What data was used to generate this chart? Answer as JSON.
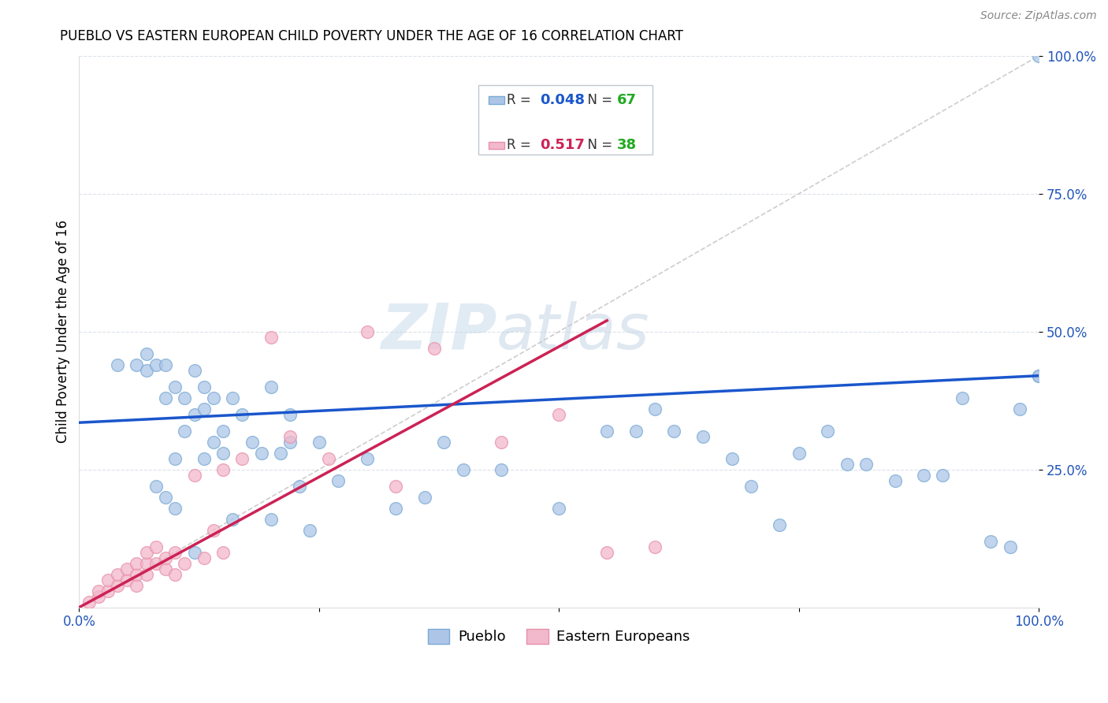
{
  "title": "PUEBLO VS EASTERN EUROPEAN CHILD POVERTY UNDER THE AGE OF 16 CORRELATION CHART",
  "source": "Source: ZipAtlas.com",
  "ylabel": "Child Poverty Under the Age of 16",
  "watermark_zip": "ZIP",
  "watermark_atlas": "atlas",
  "pueblo_R": 0.048,
  "pueblo_N": 67,
  "eastern_R": 0.517,
  "eastern_N": 38,
  "pueblo_color": "#adc6e8",
  "eastern_color": "#f2b8cc",
  "pueblo_edge_color": "#7aaad4",
  "eastern_edge_color": "#e890aa",
  "pueblo_line_color": "#1a56cc",
  "eastern_line_color": "#cc2255",
  "diagonal_color": "#c8c8c8",
  "grid_color": "#d8dfe8",
  "xlim": [
    0,
    1
  ],
  "ylim": [
    0,
    1
  ],
  "xticks": [
    0,
    0.25,
    0.5,
    0.75,
    1.0
  ],
  "yticks": [
    0.25,
    0.5,
    0.75,
    1.0
  ],
  "xticklabels": [
    "0.0%",
    "",
    "",
    "",
    "100.0%"
  ],
  "yticklabels": [
    "25.0%",
    "50.0%",
    "75.0%",
    "100.0%"
  ],
  "N_color": "#22aa22",
  "pueblo_x": [
    0.04,
    0.06,
    0.07,
    0.07,
    0.08,
    0.08,
    0.09,
    0.09,
    0.1,
    0.1,
    0.11,
    0.11,
    0.12,
    0.12,
    0.13,
    0.13,
    0.13,
    0.14,
    0.14,
    0.15,
    0.15,
    0.16,
    0.17,
    0.18,
    0.19,
    0.2,
    0.21,
    0.22,
    0.22,
    0.23,
    0.25,
    0.27,
    0.3,
    0.33,
    0.36,
    0.38,
    0.4,
    0.44,
    0.5,
    0.55,
    0.58,
    0.6,
    0.62,
    0.65,
    0.68,
    0.7,
    0.73,
    0.75,
    0.78,
    0.8,
    0.82,
    0.85,
    0.88,
    0.9,
    0.92,
    0.95,
    0.97,
    0.98,
    1.0,
    1.0,
    1.0,
    0.09,
    0.1,
    0.12,
    0.16,
    0.2,
    0.24
  ],
  "pueblo_y": [
    0.44,
    0.44,
    0.43,
    0.46,
    0.44,
    0.22,
    0.44,
    0.38,
    0.4,
    0.27,
    0.38,
    0.32,
    0.43,
    0.35,
    0.4,
    0.36,
    0.27,
    0.38,
    0.3,
    0.32,
    0.28,
    0.38,
    0.35,
    0.3,
    0.28,
    0.4,
    0.28,
    0.35,
    0.3,
    0.22,
    0.3,
    0.23,
    0.27,
    0.18,
    0.2,
    0.3,
    0.25,
    0.25,
    0.18,
    0.32,
    0.32,
    0.36,
    0.32,
    0.31,
    0.27,
    0.22,
    0.15,
    0.28,
    0.32,
    0.26,
    0.26,
    0.23,
    0.24,
    0.24,
    0.38,
    0.12,
    0.11,
    0.36,
    0.42,
    0.42,
    1.0,
    0.2,
    0.18,
    0.1,
    0.16,
    0.16,
    0.14
  ],
  "eastern_x": [
    0.01,
    0.02,
    0.02,
    0.03,
    0.03,
    0.04,
    0.04,
    0.05,
    0.05,
    0.06,
    0.06,
    0.06,
    0.07,
    0.07,
    0.07,
    0.08,
    0.08,
    0.09,
    0.09,
    0.1,
    0.1,
    0.11,
    0.12,
    0.13,
    0.14,
    0.15,
    0.15,
    0.17,
    0.2,
    0.22,
    0.26,
    0.3,
    0.33,
    0.37,
    0.44,
    0.5,
    0.55,
    0.6
  ],
  "eastern_y": [
    0.01,
    0.02,
    0.03,
    0.03,
    0.05,
    0.04,
    0.06,
    0.05,
    0.07,
    0.04,
    0.06,
    0.08,
    0.06,
    0.08,
    0.1,
    0.08,
    0.11,
    0.07,
    0.09,
    0.1,
    0.06,
    0.08,
    0.24,
    0.09,
    0.14,
    0.1,
    0.25,
    0.27,
    0.49,
    0.31,
    0.27,
    0.5,
    0.22,
    0.47,
    0.3,
    0.35,
    0.1,
    0.11
  ],
  "pueblo_line_x0": 0.0,
  "pueblo_line_x1": 1.0,
  "pueblo_line_y0": 0.335,
  "pueblo_line_y1": 0.42,
  "eastern_line_x0": 0.0,
  "eastern_line_x1": 0.55,
  "eastern_line_y0": 0.0,
  "eastern_line_y1": 0.52
}
